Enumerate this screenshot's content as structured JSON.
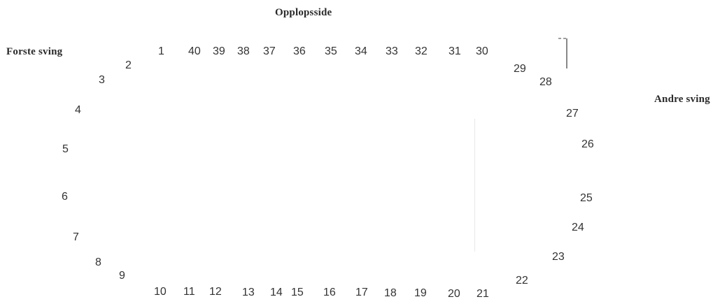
{
  "labels": {
    "top": "Opplopsside",
    "left": "Forste sving",
    "right": "Andre sving"
  },
  "positions": [
    "1",
    "2",
    "3",
    "4",
    "5",
    "6",
    "7",
    "8",
    "9",
    "10",
    "11",
    "12",
    "13",
    "14",
    "15",
    "16",
    "17",
    "18",
    "19",
    "20",
    "21",
    "22",
    "23",
    "24",
    "25",
    "26",
    "27",
    "28",
    "29",
    "30",
    "31",
    "32",
    "33",
    "34",
    "35",
    "36",
    "37",
    "38",
    "39",
    "40"
  ],
  "colors": {
    "text": "#333333",
    "title": "#2a2a2a"
  }
}
